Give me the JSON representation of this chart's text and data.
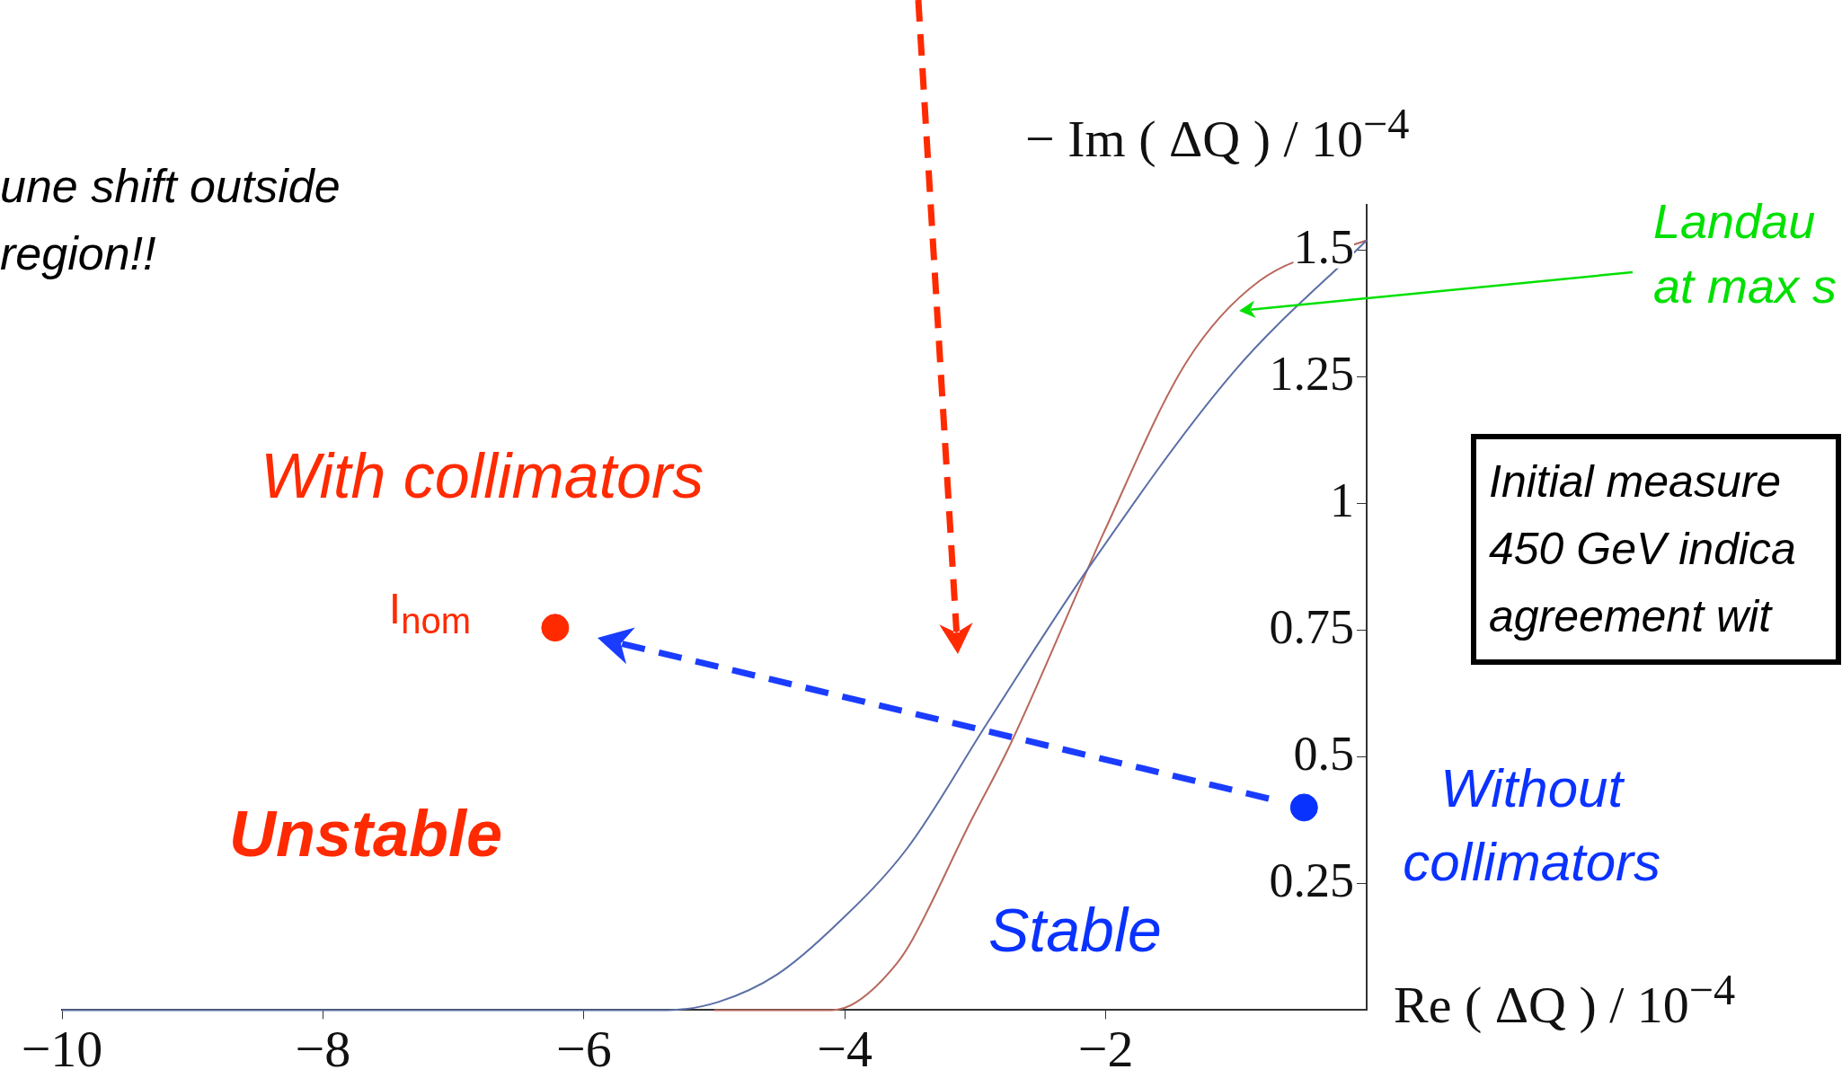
{
  "chart_data": {
    "type": "line",
    "xlabel": "Re ( ΔQ ) / 10$^{−4}$",
    "ylabel": "− Im ( ΔQ ) / 10$^{−4}$",
    "xlim": [
      -10,
      0
    ],
    "xticks": [
      {
        "value": -10,
        "label": "−10"
      },
      {
        "value": -8,
        "label": "−8"
      },
      {
        "value": -6,
        "label": "−6"
      },
      {
        "value": -4,
        "label": "−4"
      },
      {
        "value": -2,
        "label": "−2"
      }
    ],
    "ylim": [
      0,
      1.59
    ],
    "yticks": [
      0.25,
      0.5,
      0.75,
      1,
      1.25,
      1.5
    ],
    "grid": false,
    "legend": false,
    "series": [
      {
        "color": "#5b6ea6",
        "x": [
          -10,
          -5.36,
          -4.97,
          -4.52,
          -4.06,
          -3.52,
          -2.9,
          -2.14,
          -1.02,
          0
        ],
        "values": [
          0,
          0,
          0.016,
          0.07,
          0.17,
          0.32,
          0.57,
          0.87,
          1.26,
          1.52
        ]
      },
      {
        "color": "#b8685c",
        "x": [
          -5,
          -4.1,
          -3.91,
          -3.59,
          -3.48,
          -3.04,
          -2.74,
          -2.14,
          -2.02,
          -1.38,
          -0.82,
          0
        ],
        "values": [
          0,
          0,
          0.016,
          0.096,
          0.14,
          0.37,
          0.52,
          0.87,
          0.94,
          1.28,
          1.44,
          1.52
        ]
      },
      {
        "type": "scatter",
        "color": "#ff2a00",
        "x": [
          -6.22
        ],
        "values": [
          0.755
        ]
      },
      {
        "type": "scatter",
        "color": "#0a32ff",
        "x": [
          -0.48
        ],
        "values": [
          0.4
        ]
      }
    ],
    "annotations": [
      "une shift outside\nregion!!",
      "With collimators",
      {
        "text": "I$_{nom}$",
        "x": -6.22,
        "y": 0.755
      },
      "Unstable",
      "Stable",
      {
        "text": "Without\ncollimators",
        "x": -0.48,
        "y": 0.4
      },
      "Landau\nat max s",
      "Initial measure\n450 GeV indica\nagreement wit"
    ]
  }
}
